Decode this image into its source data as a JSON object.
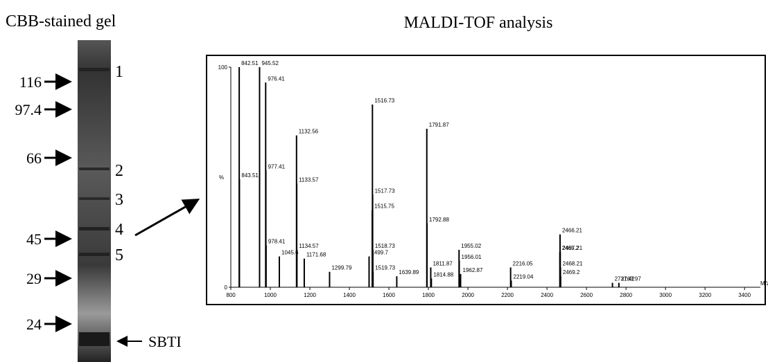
{
  "gel": {
    "title": "CBB-stained gel",
    "markers": [
      "116",
      "97.4",
      "66",
      "45",
      "29",
      "24"
    ],
    "bands": [
      "1",
      "2",
      "3",
      "4",
      "5"
    ],
    "reference": "SBTI"
  },
  "chart_data": {
    "type": "stem",
    "title": "MALDI-TOF analysis",
    "x_label": "M/z",
    "y_label": "%",
    "color": "#000000",
    "x": [
      842.51,
      843.51,
      945.52,
      976.41,
      977.41,
      978.41,
      1045.6,
      1132.56,
      1133.57,
      1134.57,
      1171.68,
      1299.79,
      1499.7,
      1515.75,
      1516.73,
      1517.73,
      1518.73,
      1519.73,
      1639.89,
      1791.87,
      1792.88,
      1811.87,
      1814.88,
      1955.02,
      1956.01,
      1962.87,
      2216.05,
      2219.04,
      2465.2,
      2466.21,
      2467.21,
      2468.21,
      2469.2,
      2731.42,
      2763.97
    ],
    "values": [
      100,
      49,
      100,
      93,
      53,
      19,
      14,
      69,
      47,
      17,
      13,
      7,
      14,
      35,
      83,
      42,
      17,
      7,
      5,
      72,
      29,
      9,
      4,
      17,
      12,
      6,
      9,
      3,
      16,
      24,
      16,
      9,
      5,
      2,
      2
    ],
    "xlim": [
      800,
      3480
    ],
    "ylim": [
      0,
      100
    ],
    "xticks": [
      800,
      1000,
      1200,
      1400,
      1600,
      1800,
      2000,
      2200,
      2400,
      2600,
      2800,
      3000,
      3200,
      3400
    ],
    "yticks": [
      0,
      100
    ]
  }
}
